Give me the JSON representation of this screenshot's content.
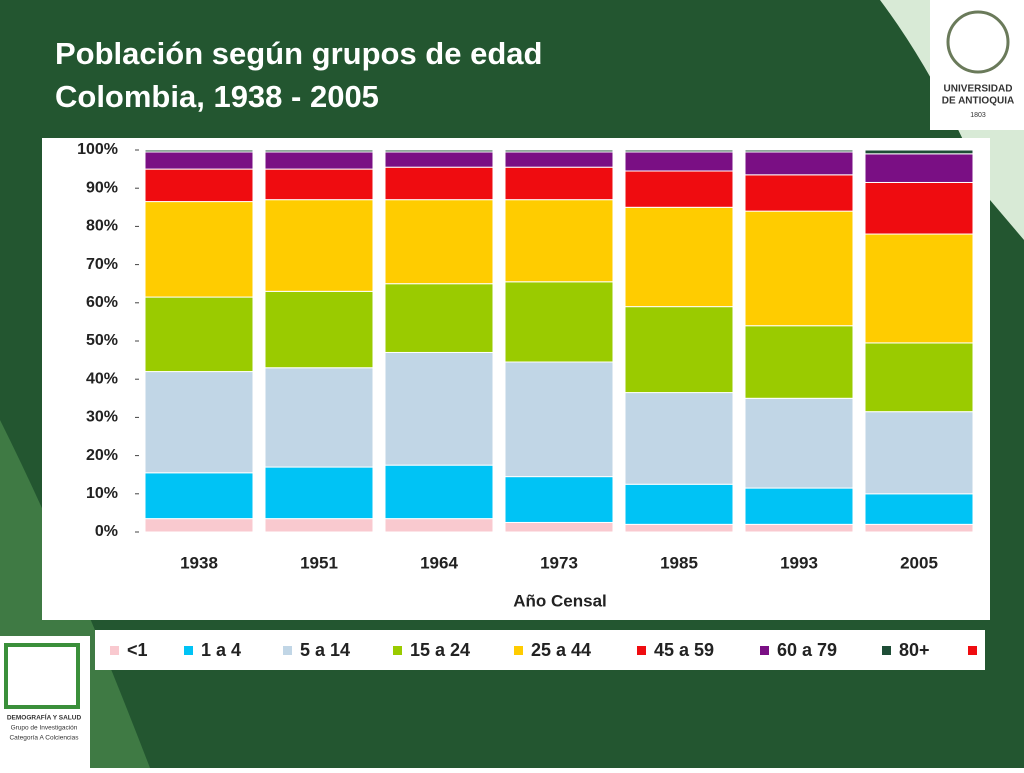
{
  "chart_data": {
    "type": "stacked_bar",
    "title": "Población según grupos de edad",
    "subtitle": "Colombia, 1938 - 2005",
    "x_label": "Año Censal",
    "categories": [
      "1938",
      "1951",
      "1964",
      "1973",
      "1985",
      "1993",
      "2005"
    ],
    "series": [
      {
        "name": "<1",
        "color": "#f9c9cf",
        "values": [
          3.5,
          3.5,
          3.5,
          2.5,
          2,
          2,
          2
        ]
      },
      {
        "name": "1 a 4",
        "color": "#00c3f5",
        "values": [
          12,
          13.5,
          14,
          12,
          10.5,
          9.5,
          8
        ]
      },
      {
        "name": "5 a 14",
        "color": "#c1d6e6",
        "values": [
          26.5,
          26,
          29.5,
          30,
          24,
          23.5,
          21.5
        ]
      },
      {
        "name": "15 a 24",
        "color": "#9acb00",
        "values": [
          19.5,
          20,
          18,
          21,
          22.5,
          19,
          18
        ]
      },
      {
        "name": "25 a 44",
        "color": "#ffcc00",
        "values": [
          25,
          24,
          22,
          21.5,
          26,
          30,
          28.5
        ]
      },
      {
        "name": "45 a 59",
        "color": "#ef0c10",
        "values": [
          8.5,
          8,
          8.5,
          8.5,
          9.5,
          9.5,
          13.5
        ]
      },
      {
        "name": "60 a 79",
        "color": "#7a0f84",
        "values": [
          4.5,
          4.5,
          4,
          4,
          5,
          6,
          7.5
        ]
      },
      {
        "name": "80+",
        "color": "#1e4d36",
        "values": [
          0.5,
          0.5,
          0.5,
          0.5,
          0.5,
          0.5,
          1
        ]
      }
    ],
    "ylim": [
      0,
      100
    ],
    "yticks": [
      {
        "value": 0,
        "label": "0%"
      },
      {
        "value": 10,
        "label": "10%"
      },
      {
        "value": 20,
        "label": "20%"
      },
      {
        "value": 30,
        "label": "30%"
      },
      {
        "value": 40,
        "label": "40%"
      },
      {
        "value": 50,
        "label": "50%"
      },
      {
        "value": 60,
        "label": "60%"
      },
      {
        "value": 70,
        "label": "70%"
      },
      {
        "value": 80,
        "label": "80%"
      },
      {
        "value": 90,
        "label": "90%"
      },
      {
        "value": 100,
        "label": "100%"
      }
    ],
    "legend": "bottom"
  },
  "logos": {
    "university": [
      "UNIVERSIDAD",
      "DE ANTIOQUIA",
      "1803"
    ],
    "group": [
      "DEMOGRAFÍA Y SALUD",
      "Grupo de Investigación",
      "Categoría A Colciencias"
    ]
  }
}
